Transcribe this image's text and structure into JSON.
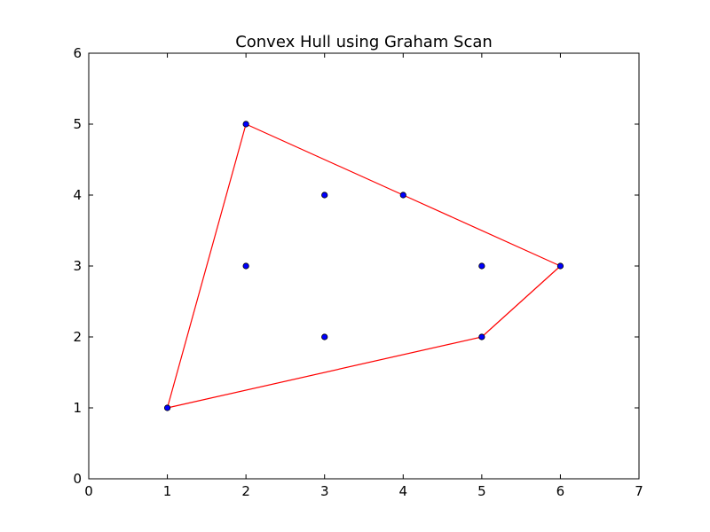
{
  "chart_data": {
    "type": "scatter",
    "title": "Convex Hull using Graham Scan",
    "xlabel": "",
    "ylabel": "",
    "xlim": [
      0,
      7
    ],
    "ylim": [
      0,
      6
    ],
    "xticks": [
      0,
      1,
      2,
      3,
      4,
      5,
      6,
      7
    ],
    "yticks": [
      0,
      1,
      2,
      3,
      4,
      5,
      6
    ],
    "grid": false,
    "series": [
      {
        "kind": "scatter",
        "color": "#0000ff",
        "edge_color": "#000000",
        "points": [
          {
            "x": 1,
            "y": 1
          },
          {
            "x": 2,
            "y": 3
          },
          {
            "x": 2,
            "y": 5
          },
          {
            "x": 3,
            "y": 2
          },
          {
            "x": 3,
            "y": 4
          },
          {
            "x": 4,
            "y": 4
          },
          {
            "x": 5,
            "y": 2
          },
          {
            "x": 5,
            "y": 3
          },
          {
            "x": 6,
            "y": 3
          }
        ]
      },
      {
        "kind": "line",
        "color": "#ff0000",
        "closed": true,
        "points": [
          {
            "x": 1,
            "y": 1
          },
          {
            "x": 5,
            "y": 2
          },
          {
            "x": 6,
            "y": 3
          },
          {
            "x": 4,
            "y": 4
          },
          {
            "x": 2,
            "y": 5
          }
        ]
      }
    ]
  }
}
